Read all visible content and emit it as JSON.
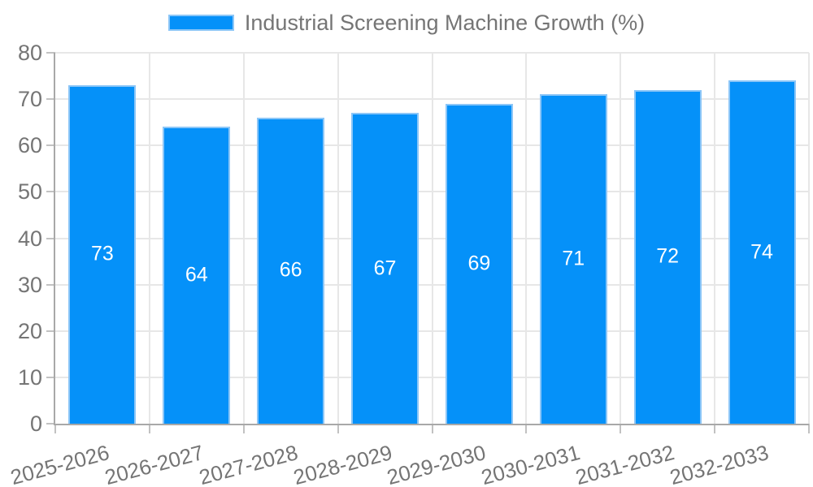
{
  "legend": {
    "label": "Industrial Screening Machine Growth (%)"
  },
  "chart_data": {
    "type": "bar",
    "title": "Industrial Screening Machine Growth (%)",
    "categories": [
      "2025-2026",
      "2026-2027",
      "2027-2028",
      "2028-2029",
      "2029-2030",
      "2030-2031",
      "2031-2032",
      "2032-2033"
    ],
    "values": [
      73,
      64,
      66,
      67,
      69,
      71,
      72,
      74
    ],
    "xlabel": "",
    "ylabel": "",
    "ylim": [
      0,
      80
    ],
    "ytick_step": 10,
    "grid": true,
    "legend_position": "top",
    "colors": {
      "bar_fill": "#0591f9",
      "bar_border": "#8cc6f7",
      "bar_label": "#ffffff",
      "axis_text": "#757575",
      "grid_line": "#e7e7e7",
      "axis_line": "#a8a8a8",
      "tick_mark": "#c2c2c2"
    }
  }
}
